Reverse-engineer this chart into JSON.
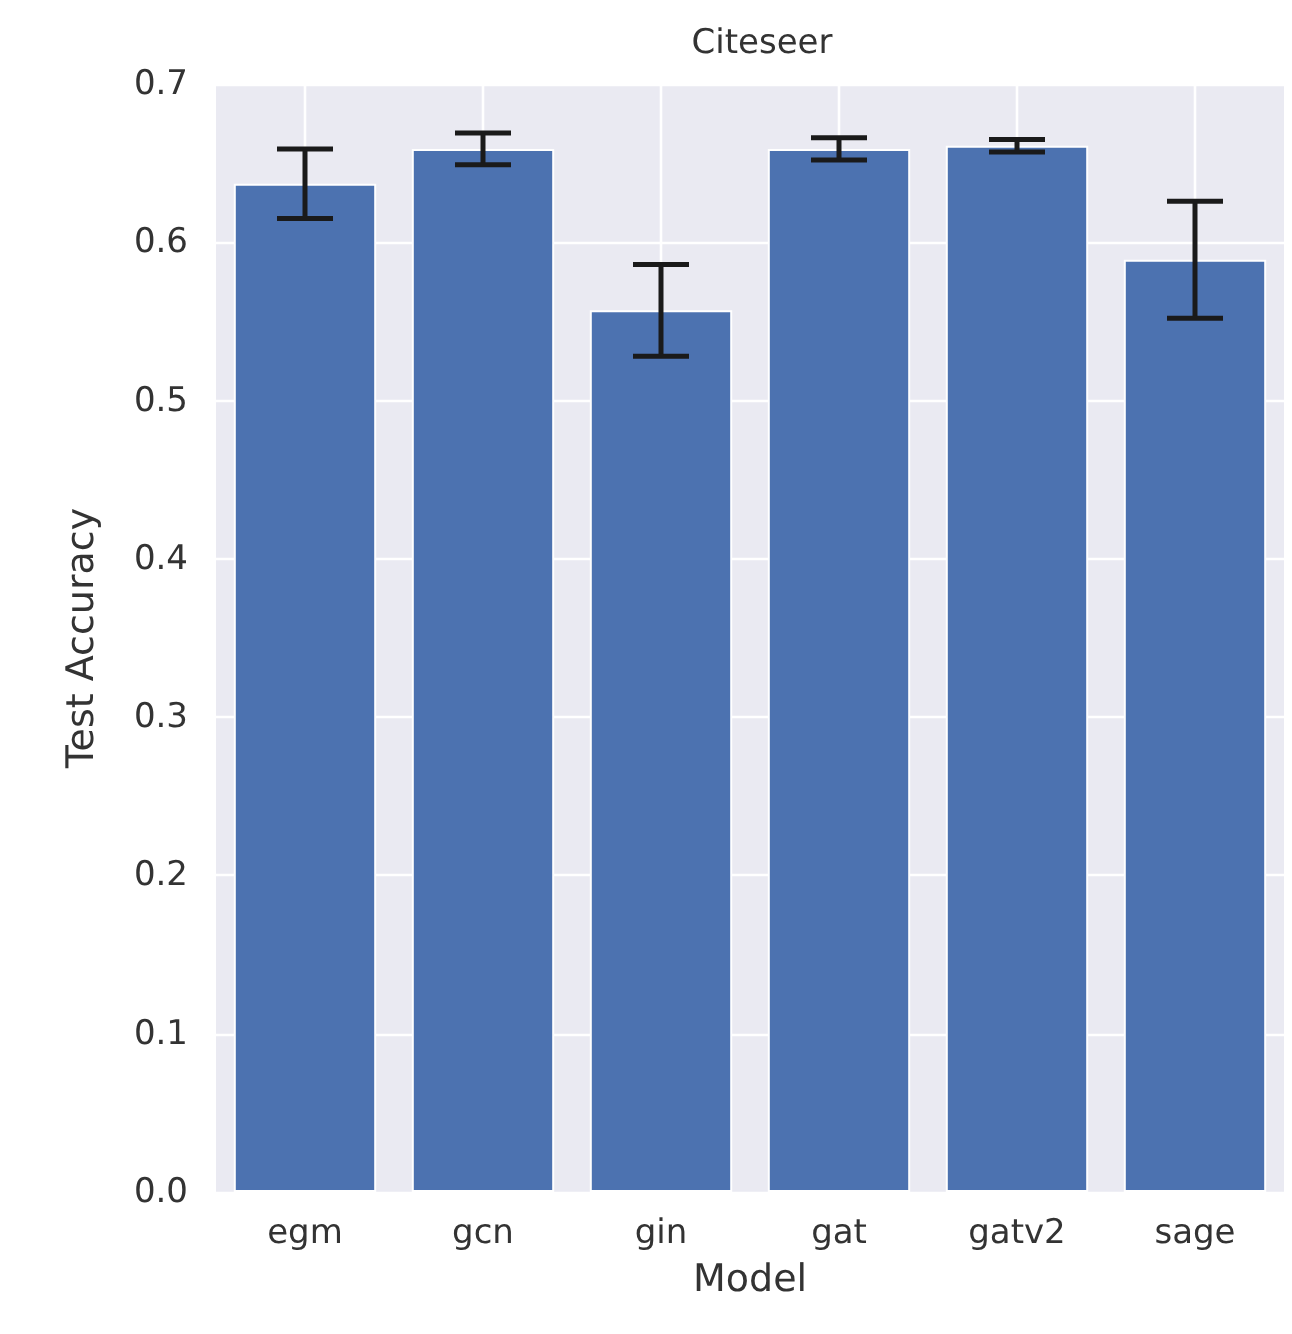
{
  "chart_data": {
    "type": "bar",
    "title": "Citeseer",
    "xlabel": "Model",
    "ylabel": "Test Accuracy",
    "categories": [
      "egm",
      "gcn",
      "gin",
      "gat",
      "gatv2",
      "sage"
    ],
    "values": [
      0.637,
      0.659,
      0.557,
      0.659,
      0.661,
      0.589
    ],
    "errors": [
      0.022,
      0.01,
      0.029,
      0.007,
      0.004,
      0.037
    ],
    "color": "#4c72b0",
    "ylim": [
      0,
      0.7
    ],
    "yticks": [
      {
        "value": 0,
        "label": "0.0"
      },
      {
        "value": 0.1,
        "label": "0.1"
      },
      {
        "value": 0.2,
        "label": "0.2"
      },
      {
        "value": 0.3,
        "label": "0.3"
      },
      {
        "value": 0.4,
        "label": "0.4"
      },
      {
        "value": 0.5,
        "label": "0.5"
      },
      {
        "value": 0.6,
        "label": "0.6"
      },
      {
        "value": 0.7,
        "label": "0.7"
      }
    ],
    "grid": true
  }
}
